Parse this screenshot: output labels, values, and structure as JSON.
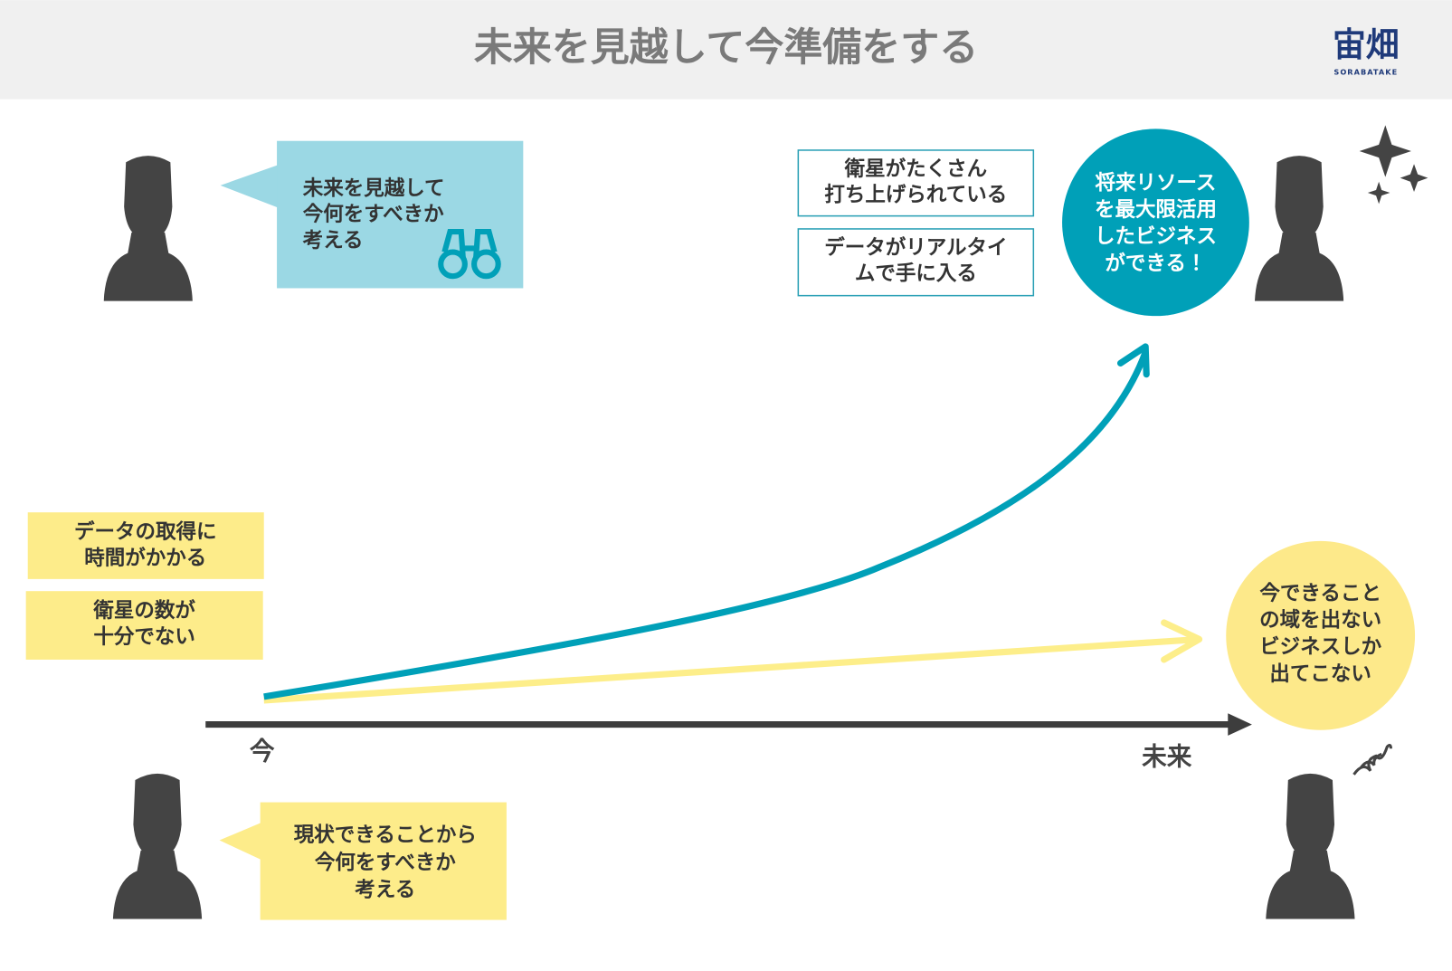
{
  "header": {
    "title": "未来を見越して今準備をする",
    "logo": "宙畑",
    "logo_sub": "SORABATAKE"
  },
  "future_bubble": {
    "lines": [
      "未来を見越して",
      "今何をすべきか",
      "考える"
    ]
  },
  "facts_future": [
    {
      "lines": [
        "衛星がたくさん",
        "打ち上げられている"
      ]
    },
    {
      "lines": [
        "データがリアルタイ",
        "ムで手に入る"
      ]
    }
  ],
  "future_result": {
    "lines": [
      "将来リソース",
      "を最大限活用",
      "したビジネス",
      "ができる！"
    ]
  },
  "facts_now": [
    {
      "lines": [
        "データの取得に",
        "時間がかかる"
      ]
    },
    {
      "lines": [
        "衛星の数が",
        "十分でない"
      ]
    }
  ],
  "now_result": {
    "lines": [
      "今できること",
      "の域を出ない",
      "ビジネスしか",
      "出てこない"
    ]
  },
  "axis": {
    "start": "今",
    "end": "未来"
  },
  "now_bubble": {
    "lines": [
      "現状できることから",
      "今何をすべきか",
      "考える"
    ]
  }
}
